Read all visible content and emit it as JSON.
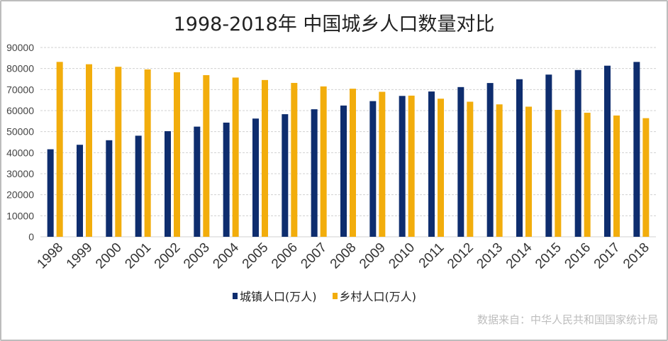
{
  "chart_data": {
    "type": "bar",
    "title": "1998-2018年 中国城乡人口数量对比",
    "categories": [
      "1998",
      "1999",
      "2000",
      "2001",
      "2002",
      "2003",
      "2004",
      "2005",
      "2006",
      "2007",
      "2008",
      "2009",
      "2010",
      "2011",
      "2012",
      "2013",
      "2014",
      "2015",
      "2016",
      "2017",
      "2018"
    ],
    "series": [
      {
        "name": "城镇人口(万人)",
        "color": "#0e2d6e",
        "values": [
          41608,
          43748,
          45906,
          48064,
          50212,
          52376,
          54283,
          56212,
          58288,
          60633,
          62403,
          64512,
          66978,
          69079,
          71182,
          73111,
          74916,
          77116,
          79298,
          81347,
          83137
        ]
      },
      {
        "name": "乡村人口(万人)",
        "color": "#f2ad0c",
        "values": [
          83153,
          82038,
          80837,
          79563,
          78241,
          76851,
          75705,
          74544,
          73160,
          71496,
          70399,
          68938,
          67113,
          65656,
          64222,
          62961,
          61866,
          60346,
          58973,
          57661,
          56401
        ]
      }
    ],
    "ylim": [
      0,
      90000
    ],
    "yticks": [
      "0",
      "10000",
      "20000",
      "30000",
      "40000",
      "50000",
      "60000",
      "70000",
      "80000",
      "90000"
    ],
    "grid": true,
    "legend": "bottom",
    "source": "数据来自：中华人民共和国国家统计局"
  }
}
